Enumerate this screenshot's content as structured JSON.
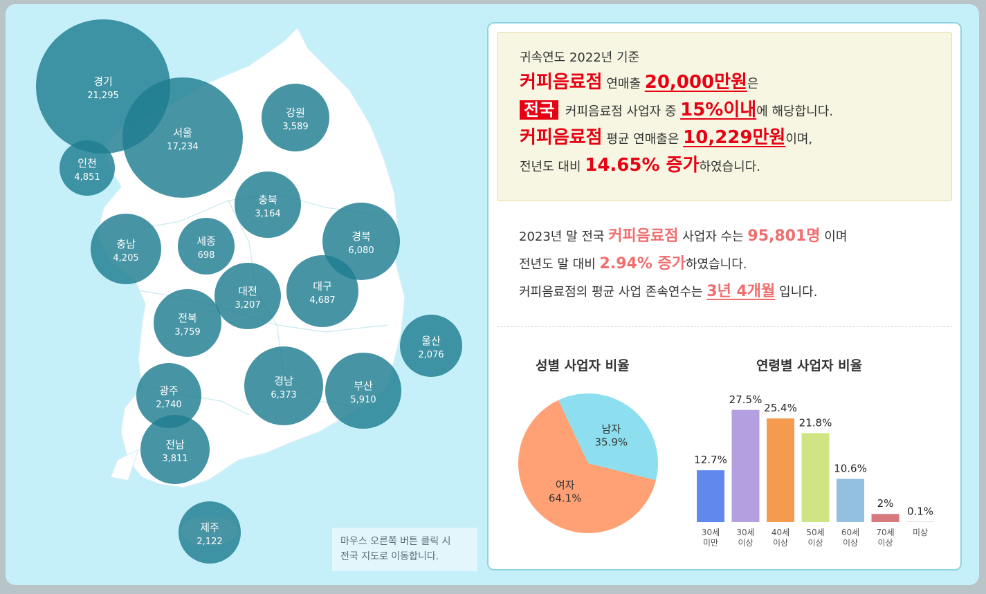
{
  "map": {
    "regions": [
      {
        "name": "경기",
        "value": "21,295"
      },
      {
        "name": "서울",
        "value": "17,234"
      },
      {
        "name": "인천",
        "value": "4,851"
      },
      {
        "name": "강원",
        "value": "3,589"
      },
      {
        "name": "충북",
        "value": "3,164"
      },
      {
        "name": "충남",
        "value": "4,205"
      },
      {
        "name": "세종",
        "value": "698"
      },
      {
        "name": "경북",
        "value": "6,080"
      },
      {
        "name": "대전",
        "value": "3,207"
      },
      {
        "name": "대구",
        "value": "4,687"
      },
      {
        "name": "전북",
        "value": "3,759"
      },
      {
        "name": "울산",
        "value": "2,076"
      },
      {
        "name": "경남",
        "value": "6,373"
      },
      {
        "name": "부산",
        "value": "5,910"
      },
      {
        "name": "광주",
        "value": "2,740"
      },
      {
        "name": "전남",
        "value": "3,811"
      },
      {
        "name": "제주",
        "value": "2,122"
      }
    ],
    "bubble_color": "#1f7c90",
    "hint_line1": "마우스 오른쪽 버튼 클릭 시",
    "hint_line2": "전국 지도로 이동합니다."
  },
  "summary": {
    "line1": "귀속연도 2022년 기준",
    "industry": "커피음료점",
    "sales_label": " 연매출 ",
    "sales_amount": "20,000만원",
    "sales_suffix": "은",
    "region": "전국",
    "line3_mid": " 커피음료점 사업자 중 ",
    "percentile": "15%이내",
    "line3_end": "에 해당합니다.",
    "avg_label": " 평균 연매출은 ",
    "avg_amount": "10,229만원",
    "avg_suffix": "이며,",
    "growth_prefix": "전년도 대비 ",
    "growth": "14.65% 증가",
    "growth_suffix": "하였습니다."
  },
  "stats": {
    "l1_prefix": "2023년 말 전국 ",
    "industry": "커피음료점",
    "l1_mid": " 사업자 수는 ",
    "count": "95,801명",
    "l1_suffix": " 이며",
    "l2_prefix": "전년도 말 대비 ",
    "growth": "2.94% 증가",
    "l2_suffix": "하였습니다.",
    "l3_prefix": "커피음료점의 평균 사업 존속연수는 ",
    "duration": "3년 4개월",
    "l3_suffix": " 입니다."
  },
  "colors": {
    "accent_red": "#e60012",
    "accent_pink": "#f06e6e",
    "male": "#8ddff0",
    "female": "#ffa075"
  },
  "chart_data": [
    {
      "type": "pie",
      "title": "성별 사업자 비율",
      "slices": [
        {
          "label": "남자",
          "value": 35.9,
          "display": "35.9%",
          "color": "#8ddff0"
        },
        {
          "label": "여자",
          "value": 64.1,
          "display": "64.1%",
          "color": "#ffa075"
        }
      ]
    },
    {
      "type": "bar",
      "title": "연령별 사업자 비율",
      "categories": [
        [
          "30세",
          "미만"
        ],
        [
          "30세",
          "이상"
        ],
        [
          "40세",
          "이상"
        ],
        [
          "50세",
          "이상"
        ],
        [
          "60세",
          "이상"
        ],
        [
          "70세",
          "이상"
        ],
        [
          "미상"
        ]
      ],
      "values": [
        12.7,
        27.5,
        25.4,
        21.8,
        10.6,
        2,
        0.1
      ],
      "labels": [
        "12.7%",
        "27.5%",
        "25.4%",
        "21.8%",
        "10.6%",
        "2%",
        "0.1%"
      ],
      "colors": [
        "#6188ec",
        "#b49fe0",
        "#f49b4f",
        "#cfe584",
        "#93bfe0",
        "#d77a7d",
        "#c9c9c9"
      ]
    }
  ]
}
